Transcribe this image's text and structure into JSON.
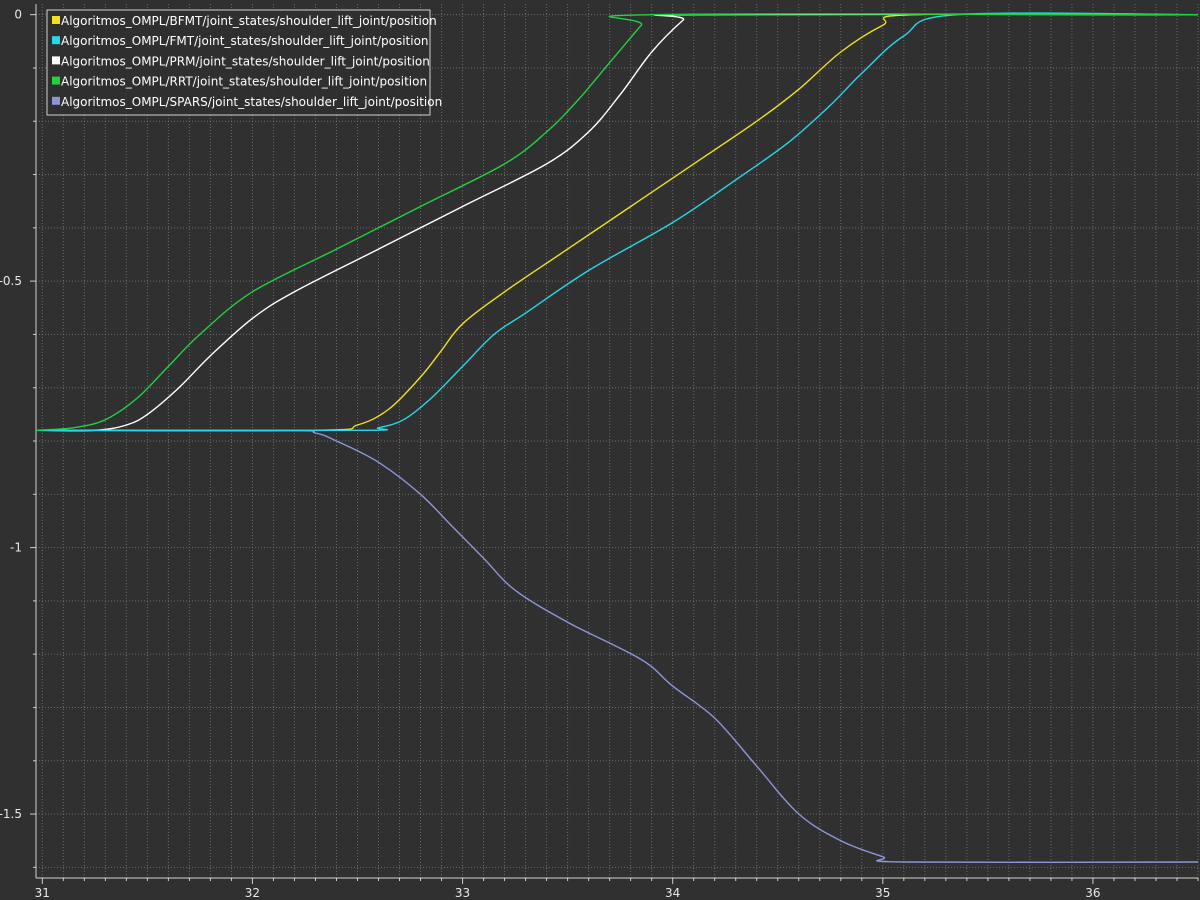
{
  "chart_data": {
    "type": "line",
    "title": "",
    "xlabel": "",
    "ylabel": "",
    "xlim": [
      30.97,
      36.5
    ],
    "ylim": [
      -1.62,
      0.02
    ],
    "x_major_ticks": [
      31,
      32,
      33,
      34,
      35,
      36
    ],
    "x_tick_labels": [
      "31",
      "32",
      "33",
      "34",
      "35",
      "36"
    ],
    "y_major_ticks": [
      0,
      -0.5,
      -1,
      -1.5
    ],
    "y_tick_labels": [
      "0",
      "-0.5",
      "-1",
      "-1.5"
    ],
    "grid": true,
    "legend_position": "top-left",
    "background_color": "#303030",
    "series": [
      {
        "name": "Algoritmos_OMPL/BFMT/joint_states/shoulder_lift_joint/position",
        "color": "#f0e21c",
        "points": [
          [
            30.97,
            -0.78
          ],
          [
            32.3,
            -0.78
          ],
          [
            32.5,
            -0.77
          ],
          [
            32.65,
            -0.74
          ],
          [
            32.8,
            -0.68
          ],
          [
            32.9,
            -0.63
          ],
          [
            33.0,
            -0.58
          ],
          [
            33.2,
            -0.52
          ],
          [
            33.5,
            -0.44
          ],
          [
            33.8,
            -0.36
          ],
          [
            34.1,
            -0.28
          ],
          [
            34.4,
            -0.2
          ],
          [
            34.6,
            -0.14
          ],
          [
            34.8,
            -0.07
          ],
          [
            35.0,
            -0.02
          ],
          [
            35.15,
            0.0
          ],
          [
            36.5,
            0.0
          ]
        ]
      },
      {
        "name": "Algoritmos_OMPL/FMT/joint_states/shoulder_lift_joint/position",
        "color": "#28d7e8",
        "points": [
          [
            30.97,
            -0.78
          ],
          [
            32.5,
            -0.78
          ],
          [
            32.6,
            -0.775
          ],
          [
            32.72,
            -0.76
          ],
          [
            32.85,
            -0.72
          ],
          [
            33.0,
            -0.66
          ],
          [
            33.15,
            -0.6
          ],
          [
            33.3,
            -0.56
          ],
          [
            33.6,
            -0.48
          ],
          [
            34.0,
            -0.39
          ],
          [
            34.3,
            -0.31
          ],
          [
            34.55,
            -0.24
          ],
          [
            34.75,
            -0.17
          ],
          [
            34.9,
            -0.11
          ],
          [
            35.1,
            -0.04
          ],
          [
            35.35,
            0.0
          ],
          [
            36.5,
            0.0
          ]
        ]
      },
      {
        "name": "Algoritmos_OMPL/PRM/joint_states/shoulder_lift_joint/position",
        "color": "#ffffff",
        "points": [
          [
            30.97,
            -0.78
          ],
          [
            31.25,
            -0.78
          ],
          [
            31.4,
            -0.77
          ],
          [
            31.5,
            -0.75
          ],
          [
            31.65,
            -0.7
          ],
          [
            31.8,
            -0.64
          ],
          [
            32.0,
            -0.57
          ],
          [
            32.2,
            -0.52
          ],
          [
            32.6,
            -0.44
          ],
          [
            33.0,
            -0.36
          ],
          [
            33.4,
            -0.28
          ],
          [
            33.6,
            -0.22
          ],
          [
            33.75,
            -0.15
          ],
          [
            33.9,
            -0.07
          ],
          [
            34.05,
            -0.01
          ],
          [
            34.1,
            0.0
          ],
          [
            36.5,
            0.0
          ]
        ]
      },
      {
        "name": "Algoritmos_OMPL/RRT/joint_states/shoulder_lift_joint/position",
        "color": "#22d040",
        "points": [
          [
            30.97,
            -0.78
          ],
          [
            31.15,
            -0.775
          ],
          [
            31.3,
            -0.76
          ],
          [
            31.45,
            -0.72
          ],
          [
            31.6,
            -0.66
          ],
          [
            31.75,
            -0.6
          ],
          [
            32.0,
            -0.52
          ],
          [
            32.4,
            -0.44
          ],
          [
            32.8,
            -0.36
          ],
          [
            33.2,
            -0.28
          ],
          [
            33.4,
            -0.22
          ],
          [
            33.55,
            -0.16
          ],
          [
            33.7,
            -0.09
          ],
          [
            33.85,
            -0.02
          ],
          [
            33.9,
            0.0
          ],
          [
            36.5,
            0.0
          ]
        ]
      },
      {
        "name": "Algoritmos_OMPL/SPARS/joint_states/shoulder_lift_joint/position",
        "color": "#8c95d8",
        "points": [
          [
            30.97,
            -0.78
          ],
          [
            32.15,
            -0.78
          ],
          [
            32.3,
            -0.785
          ],
          [
            32.4,
            -0.8
          ],
          [
            32.6,
            -0.84
          ],
          [
            32.8,
            -0.9
          ],
          [
            32.95,
            -0.96
          ],
          [
            33.1,
            -1.02
          ],
          [
            33.25,
            -1.08
          ],
          [
            33.5,
            -1.14
          ],
          [
            33.85,
            -1.21
          ],
          [
            34.0,
            -1.26
          ],
          [
            34.2,
            -1.32
          ],
          [
            34.4,
            -1.41
          ],
          [
            34.6,
            -1.5
          ],
          [
            34.8,
            -1.55
          ],
          [
            35.0,
            -1.58
          ],
          [
            35.1,
            -1.59
          ],
          [
            36.5,
            -1.59
          ]
        ]
      }
    ]
  }
}
